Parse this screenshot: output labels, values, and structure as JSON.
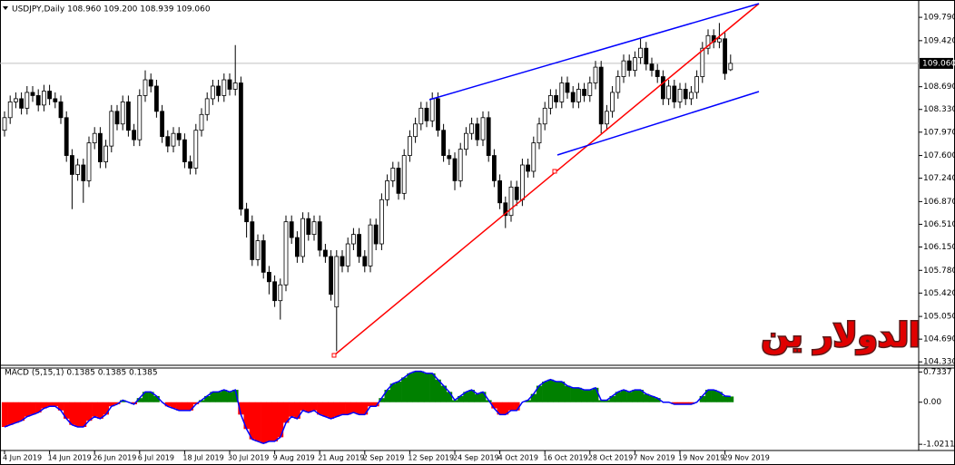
{
  "chart_data": {
    "type": "candlestick",
    "title": "USDJPY,Daily 108.960 109.200 108.939 109.060",
    "watermark": "الدولار ين",
    "categories": [
      "4 Jun 2019",
      null,
      null,
      null,
      null,
      null,
      null,
      null,
      "14 Jun 2019",
      null,
      null,
      null,
      null,
      null,
      null,
      null,
      "26 Jun 2019",
      null,
      null,
      null,
      null,
      null,
      null,
      null,
      "6 Jul 2019",
      null,
      null,
      null,
      null,
      null,
      null,
      null,
      "18 Jul 2019",
      null,
      null,
      null,
      null,
      null,
      null,
      null,
      "30 Jul 2019",
      null,
      null,
      null,
      null,
      null,
      null,
      null,
      "9 Aug 2019",
      null,
      null,
      null,
      null,
      null,
      null,
      null,
      "21 Aug 2019",
      null,
      null,
      null,
      null,
      null,
      null,
      null,
      "2 Sep 2019",
      null,
      null,
      null,
      null,
      null,
      null,
      null,
      "12 Sep 2019",
      null,
      null,
      null,
      null,
      null,
      null,
      null,
      "24 Sep 2019",
      null,
      null,
      null,
      null,
      null,
      null,
      null,
      "4 Oct 2019",
      null,
      null,
      null,
      null,
      null,
      null,
      null,
      "16 Oct 2019",
      null,
      null,
      null,
      null,
      null,
      null,
      null,
      "28 Oct 2019",
      null,
      null,
      null,
      null,
      null,
      null,
      null,
      "7 Nov 2019",
      null,
      null,
      null,
      null,
      null,
      null,
      null,
      "19 Nov 2019",
      null,
      null,
      null,
      null,
      null,
      null,
      null,
      "29 Nov 2019",
      null
    ],
    "open": [
      108.0,
      108.2,
      108.45,
      108.5,
      108.35,
      108.6,
      108.55,
      108.4,
      108.62,
      108.5,
      108.45,
      108.2,
      107.6,
      107.3,
      107.45,
      107.2,
      107.8,
      107.95,
      107.5,
      107.75,
      108.3,
      108.1,
      108.45,
      108.0,
      107.85,
      108.55,
      108.8,
      108.7,
      108.3,
      107.9,
      107.75,
      107.95,
      107.85,
      107.5,
      107.4,
      108.0,
      108.25,
      108.5,
      108.7,
      108.55,
      108.8,
      108.65,
      108.75,
      106.75,
      106.55,
      105.95,
      106.25,
      105.75,
      105.6,
      105.3,
      105.55,
      106.55,
      106.3,
      106.0,
      106.6,
      106.35,
      106.55,
      106.1,
      106.0,
      105.2,
      106.0,
      105.85,
      106.2,
      106.35,
      106.0,
      105.85,
      106.5,
      106.2,
      106.9,
      107.2,
      107.4,
      107.0,
      107.6,
      107.9,
      108.1,
      108.35,
      108.15,
      108.5,
      108.0,
      107.6,
      107.55,
      107.2,
      107.7,
      107.95,
      108.1,
      107.85,
      108.2,
      107.6,
      107.2,
      106.85,
      106.65,
      107.1,
      106.9,
      107.45,
      107.35,
      107.8,
      108.1,
      108.35,
      108.55,
      108.45,
      108.75,
      108.6,
      108.45,
      108.65,
      108.55,
      108.75,
      109.0,
      108.1,
      108.3,
      108.6,
      108.85,
      109.1,
      108.95,
      109.15,
      109.3,
      109.05,
      108.95,
      108.85,
      108.5,
      108.7,
      108.45,
      108.65,
      108.5,
      108.6,
      108.85,
      109.3,
      109.5,
      109.4,
      109.45,
      108.96
    ],
    "high": [
      108.3,
      108.55,
      108.6,
      108.6,
      108.7,
      108.7,
      108.65,
      108.72,
      108.72,
      108.6,
      108.55,
      108.3,
      107.7,
      107.55,
      107.55,
      107.9,
      108.05,
      108.05,
      107.85,
      108.4,
      108.4,
      108.55,
      108.55,
      108.1,
      108.65,
      108.95,
      108.9,
      108.8,
      108.4,
      108.0,
      108.05,
      108.05,
      107.95,
      107.6,
      108.1,
      108.35,
      108.6,
      108.8,
      108.8,
      108.9,
      108.9,
      109.35,
      108.85,
      106.85,
      106.65,
      106.35,
      106.35,
      105.85,
      105.7,
      105.65,
      106.65,
      106.65,
      106.4,
      106.7,
      106.7,
      106.65,
      106.65,
      106.2,
      106.1,
      106.1,
      106.1,
      106.3,
      106.45,
      106.45,
      106.1,
      106.6,
      106.6,
      107.0,
      107.3,
      107.5,
      107.5,
      107.7,
      108.0,
      108.2,
      108.45,
      108.45,
      108.6,
      108.6,
      108.1,
      107.7,
      107.65,
      107.8,
      108.05,
      108.2,
      108.2,
      108.3,
      108.3,
      107.7,
      107.3,
      106.95,
      107.2,
      107.2,
      107.55,
      107.55,
      107.9,
      108.2,
      108.45,
      108.65,
      108.65,
      108.85,
      108.85,
      108.7,
      108.75,
      108.75,
      108.85,
      109.1,
      109.1,
      108.4,
      108.7,
      108.95,
      109.2,
      109.2,
      109.25,
      109.45,
      109.4,
      109.15,
      109.05,
      108.95,
      108.8,
      108.8,
      108.75,
      108.75,
      108.7,
      108.95,
      109.4,
      109.6,
      109.6,
      109.7,
      109.55,
      109.2
    ],
    "low": [
      107.9,
      108.1,
      108.35,
      108.25,
      108.25,
      108.45,
      108.3,
      108.3,
      108.4,
      108.35,
      108.1,
      107.5,
      106.75,
      107.2,
      106.85,
      107.1,
      107.7,
      107.4,
      107.4,
      107.65,
      108.0,
      108.0,
      107.9,
      107.75,
      107.75,
      108.45,
      108.6,
      108.2,
      107.8,
      107.65,
      107.65,
      107.75,
      107.4,
      107.3,
      107.3,
      107.9,
      108.15,
      108.4,
      108.45,
      108.45,
      108.55,
      108.55,
      106.65,
      106.3,
      105.85,
      105.85,
      105.65,
      105.4,
      105.2,
      105.0,
      105.45,
      106.2,
      105.9,
      105.9,
      106.25,
      106.25,
      106.0,
      105.9,
      105.3,
      104.5,
      105.75,
      105.75,
      106.1,
      105.9,
      105.75,
      105.75,
      106.1,
      106.1,
      106.8,
      107.1,
      106.9,
      106.9,
      107.5,
      107.8,
      108.0,
      108.05,
      108.05,
      107.9,
      107.5,
      107.45,
      107.05,
      107.1,
      107.6,
      107.85,
      107.75,
      107.75,
      107.5,
      107.1,
      106.75,
      106.45,
      106.55,
      106.8,
      106.8,
      107.25,
      107.25,
      107.7,
      108.0,
      108.25,
      108.35,
      108.35,
      108.5,
      108.35,
      108.35,
      108.45,
      108.45,
      108.65,
      107.95,
      108.0,
      108.2,
      108.5,
      108.75,
      108.85,
      108.85,
      109.05,
      108.95,
      108.85,
      108.75,
      108.4,
      108.4,
      108.35,
      108.35,
      108.4,
      108.4,
      108.5,
      108.75,
      109.2,
      109.3,
      109.3,
      108.8,
      108.939
    ],
    "close": [
      108.2,
      108.45,
      108.5,
      108.35,
      108.6,
      108.55,
      108.4,
      108.62,
      108.5,
      108.45,
      108.2,
      107.6,
      107.3,
      107.45,
      107.2,
      107.8,
      107.95,
      107.5,
      107.75,
      108.3,
      108.1,
      108.45,
      108.0,
      107.85,
      108.55,
      108.8,
      108.7,
      108.3,
      107.9,
      107.75,
      107.95,
      107.85,
      107.5,
      107.4,
      108.0,
      108.25,
      108.5,
      108.7,
      108.55,
      108.8,
      108.65,
      108.75,
      106.75,
      106.55,
      105.95,
      106.25,
      105.75,
      105.6,
      105.3,
      105.55,
      106.55,
      106.3,
      106.0,
      106.6,
      106.35,
      106.55,
      106.1,
      106.0,
      105.4,
      106.0,
      105.85,
      106.2,
      106.35,
      106.0,
      105.85,
      106.5,
      106.2,
      106.9,
      107.2,
      107.4,
      107.0,
      107.6,
      107.9,
      108.1,
      108.35,
      108.15,
      108.5,
      108.0,
      107.6,
      107.55,
      107.2,
      107.7,
      107.95,
      108.1,
      107.85,
      108.2,
      107.6,
      107.2,
      106.85,
      106.65,
      107.1,
      106.9,
      107.45,
      107.35,
      107.8,
      108.1,
      108.35,
      108.55,
      108.45,
      108.75,
      108.6,
      108.45,
      108.65,
      108.55,
      108.75,
      109.0,
      108.1,
      108.3,
      108.6,
      108.85,
      109.1,
      108.95,
      109.15,
      109.3,
      109.05,
      108.95,
      108.85,
      108.5,
      108.7,
      108.45,
      108.65,
      108.5,
      108.6,
      108.85,
      109.3,
      109.5,
      109.4,
      109.45,
      108.9,
      109.06
    ],
    "up_color": "#ffffff",
    "down_color": "#000000",
    "ylim": [
      104.29,
      110.05
    ],
    "yticks": [
      {
        "value": 109.79,
        "label": "109.790"
      },
      {
        "value": 109.42,
        "label": "109.420"
      },
      {
        "value": 108.69,
        "label": "108.690"
      },
      {
        "value": 108.33,
        "label": "108.330"
      },
      {
        "value": 107.97,
        "label": "107.970"
      },
      {
        "value": 107.6,
        "label": "107.600"
      },
      {
        "value": 107.24,
        "label": "107.240"
      },
      {
        "value": 106.87,
        "label": "106.870"
      },
      {
        "value": 106.51,
        "label": "106.510"
      },
      {
        "value": 106.15,
        "label": "106.150"
      },
      {
        "value": 105.78,
        "label": "105.780"
      },
      {
        "value": 105.42,
        "label": "105.420"
      },
      {
        "value": 105.05,
        "label": "105.050"
      },
      {
        "value": 104.69,
        "label": "104.690"
      },
      {
        "value": 104.33,
        "label": "104.330"
      }
    ],
    "current_price": {
      "value": 109.06,
      "label": "109.060"
    },
    "indicator": {
      "title": "MACD (5,15,1) 0.1385 0.1385 0.1385",
      "values": [
        -0.6,
        -0.55,
        -0.5,
        -0.45,
        -0.35,
        -0.3,
        -0.25,
        -0.15,
        -0.1,
        -0.1,
        -0.2,
        -0.4,
        -0.55,
        -0.6,
        -0.6,
        -0.45,
        -0.35,
        -0.4,
        -0.3,
        -0.1,
        -0.05,
        0.05,
        0.0,
        -0.05,
        0.1,
        0.25,
        0.25,
        0.15,
        0.0,
        -0.1,
        -0.15,
        -0.2,
        -0.2,
        -0.2,
        -0.05,
        0.05,
        0.15,
        0.25,
        0.25,
        0.3,
        0.25,
        0.3,
        -0.3,
        -0.65,
        -0.9,
        -0.95,
        -1.0,
        -0.95,
        -0.95,
        -0.85,
        -0.5,
        -0.35,
        -0.4,
        -0.2,
        -0.25,
        -0.2,
        -0.3,
        -0.35,
        -0.4,
        -0.35,
        -0.3,
        -0.3,
        -0.25,
        -0.3,
        -0.3,
        -0.1,
        -0.1,
        0.1,
        0.3,
        0.45,
        0.5,
        0.6,
        0.7,
        0.75,
        0.75,
        0.7,
        0.7,
        0.55,
        0.4,
        0.25,
        0.05,
        0.15,
        0.25,
        0.3,
        0.2,
        0.25,
        0.05,
        -0.15,
        -0.3,
        -0.3,
        -0.2,
        -0.2,
        0.0,
        0.05,
        0.2,
        0.4,
        0.5,
        0.55,
        0.5,
        0.5,
        0.4,
        0.35,
        0.35,
        0.3,
        0.3,
        0.35,
        0.05,
        0.05,
        0.15,
        0.25,
        0.3,
        0.25,
        0.3,
        0.3,
        0.2,
        0.15,
        0.1,
        0.0,
        0.0,
        -0.05,
        -0.05,
        -0.05,
        -0.05,
        0.0,
        0.15,
        0.3,
        0.3,
        0.25,
        0.15,
        0.1385
      ],
      "positive_color": "#008000",
      "negative_color": "#ff0000",
      "line_color": "#0000ff",
      "ylim": [
        -1.15,
        0.83
      ],
      "yticks": [
        {
          "value": 0.7337,
          "label": "0.7337"
        },
        {
          "value": 0,
          "label": "0.00"
        },
        {
          "value": -1.0211,
          "label": "-1.0211"
        }
      ]
    }
  }
}
